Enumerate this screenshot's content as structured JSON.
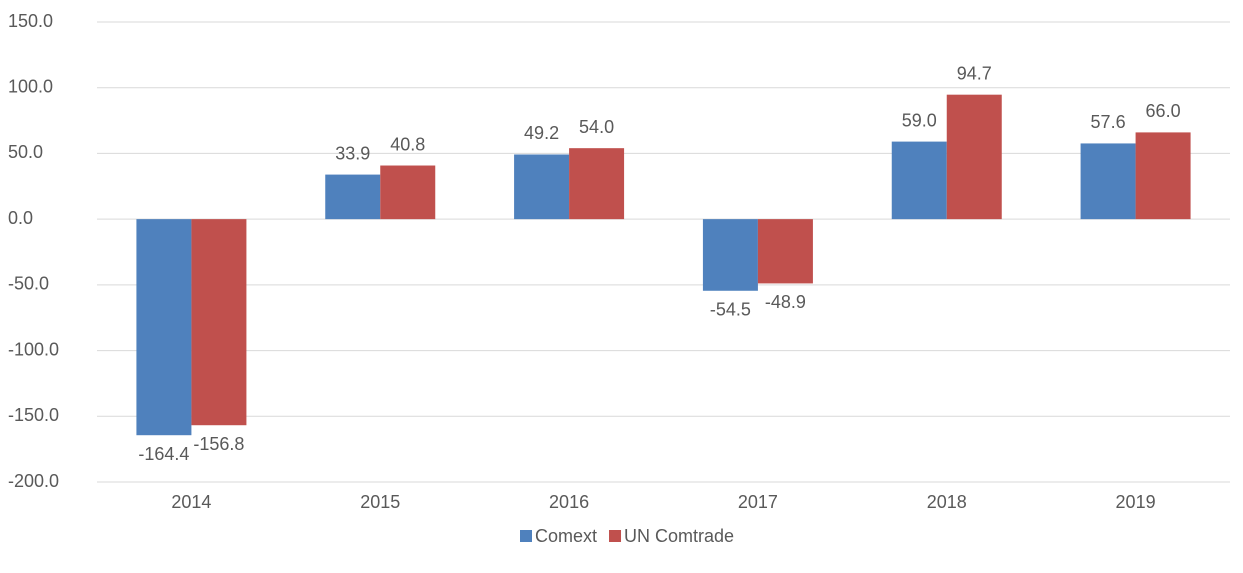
{
  "chart_data": {
    "type": "bar",
    "categories": [
      "2014",
      "2015",
      "2016",
      "2017",
      "2018",
      "2019"
    ],
    "series": [
      {
        "name": "Comext",
        "color": "#4f81bd",
        "values": [
          -164.4,
          33.9,
          49.2,
          -54.5,
          59,
          57.6
        ],
        "value_labels": [
          "-164.4",
          "33.9",
          "49.2",
          "-54.5",
          "59.0",
          "57.6"
        ]
      },
      {
        "name": "UN Comtrade",
        "color": "#c0504d",
        "values": [
          -156.8,
          40.8,
          54,
          -48.9,
          94.7,
          66
        ],
        "value_labels": [
          "-156.8",
          "40.8",
          "54.0",
          "-48.9",
          "94.7",
          "66.0"
        ]
      }
    ],
    "ylim": [
      -200,
      150
    ],
    "yticks": [
      {
        "value": -200,
        "label": "-200.0"
      },
      {
        "value": -150,
        "label": "-150.0"
      },
      {
        "value": -100,
        "label": "-100.0"
      },
      {
        "value": -50,
        "label": "-50.0"
      },
      {
        "value": 0,
        "label": "0.0"
      },
      {
        "value": 50,
        "label": "50.0"
      },
      {
        "value": 100,
        "label": "100.0"
      },
      {
        "value": 150,
        "label": "150.0"
      }
    ],
    "grid": true,
    "legend": "bottom"
  }
}
